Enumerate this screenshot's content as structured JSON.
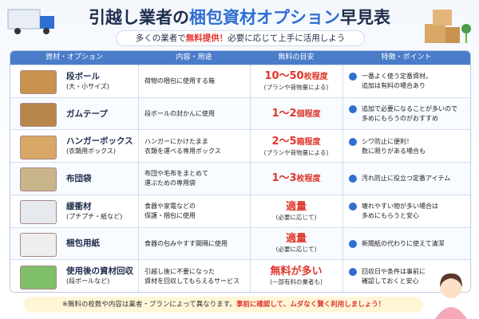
{
  "header": {
    "title": {
      "part1": "引越し業者の",
      "part2": "梱包資材オプション",
      "part3": "早見表"
    },
    "subtitle": {
      "part1": "多くの業者で",
      "part2": "無料提供！",
      "part3": "必要に応じて上手に活用しよう"
    }
  },
  "table": {
    "columns": [
      "資材・オプション",
      "内容・用途",
      "無料の目安",
      "特徴・ポイント"
    ],
    "rows": [
      {
        "name": "段ボール",
        "sub": "(大・小サイズ)",
        "content": [
          "荷物の梱包に使用する箱"
        ],
        "amount": "10～50",
        "unit": "枚程度",
        "note": "(プランや荷物量による)",
        "feature": [
          "一番よく使う定番資材。",
          "追加は有料の場合あり"
        ]
      },
      {
        "name": "ガムテープ",
        "content": [
          "段ボールの封かんに使用"
        ],
        "amount": "1～2",
        "unit": "個程度",
        "feature": [
          "追加で必要になることが多いので",
          "多めにもらうのがおすすめ"
        ]
      },
      {
        "name": "ハンガーボックス",
        "sub": "(衣類用ボックス)",
        "content": [
          "ハンガーにかけたまま",
          "衣類を運べる専用ボックス"
        ],
        "amount": "2～5",
        "unit": "箱程度",
        "note": "(プランや荷物量による)",
        "feature": [
          "シワ防止に便利！",
          "数に限りがある場合も"
        ]
      },
      {
        "name": "布団袋",
        "content": [
          "布団や毛布をまとめて",
          "運ぶための専用袋"
        ],
        "amount": "1～3",
        "unit": "枚程度",
        "feature": [
          "汚れ防止に役立つ定番アイテム"
        ]
      },
      {
        "name": "緩衝材",
        "sub": "(プチプチ・紙など)",
        "content": [
          "食器や家電などの",
          "保護・梱包に使用"
        ],
        "amount": "適量",
        "note": "(必要に応じて)",
        "feature": [
          "壊れやすい物が多い場合は",
          "多めにもらうと安心"
        ]
      },
      {
        "name": "梱包用紙",
        "content": [
          "食器の包みやすす間隔に使用"
        ],
        "amount": "適量",
        "note": "(必要に応じて)",
        "feature": [
          "新聞紙の代わりに使えて清潔"
        ]
      },
      {
        "name": "使用後の資材回収",
        "sub": "(段ボールなど)",
        "content": [
          "引越し後に不要になった",
          "資材を回収してもらえるサービス"
        ],
        "amount": "無料が多い",
        "note": "(一部有料の業者も)",
        "feature": [
          "回収日や条件は事前に",
          "確認しておくと安心"
        ]
      }
    ]
  },
  "footer": {
    "part1": "※無料の枚数や内容は業者・プランによって異なります。",
    "part2": "事前に確認して、ムダなく賢く利用しましょう！"
  }
}
